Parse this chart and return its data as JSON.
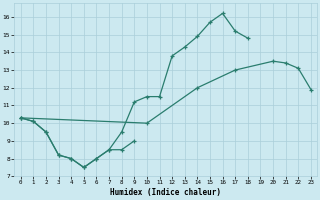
{
  "bg_color": "#cce9f0",
  "grid_color": "#aacfda",
  "line_color": "#2a7d6e",
  "xlabel": "Humidex (Indice chaleur)",
  "xlim": [
    -0.5,
    23.5
  ],
  "ylim": [
    7,
    16.8
  ],
  "xticks": [
    0,
    1,
    2,
    3,
    4,
    5,
    6,
    7,
    8,
    9,
    10,
    11,
    12,
    13,
    14,
    15,
    16,
    17,
    18,
    19,
    20,
    21,
    22,
    23
  ],
  "yticks": [
    7,
    8,
    9,
    10,
    11,
    12,
    13,
    14,
    15,
    16
  ],
  "line1_x": [
    0,
    1,
    2,
    3,
    4,
    5,
    6,
    7,
    8,
    9
  ],
  "line1_y": [
    10.3,
    10.1,
    9.5,
    8.2,
    8.0,
    7.5,
    8.0,
    8.5,
    8.5,
    9.0
  ],
  "line2_x": [
    0,
    1,
    2,
    3,
    4,
    5,
    6,
    7,
    8,
    9,
    10,
    11,
    12,
    13,
    14,
    15,
    16,
    17,
    18
  ],
  "line2_y": [
    10.3,
    10.1,
    9.5,
    8.2,
    8.0,
    7.5,
    8.0,
    8.5,
    9.5,
    11.2,
    11.5,
    11.5,
    13.8,
    14.3,
    14.9,
    15.7,
    16.2,
    15.2,
    14.8
  ],
  "line3_x": [
    0,
    10,
    14,
    17,
    20,
    21,
    22,
    23
  ],
  "line3_y": [
    10.3,
    10.0,
    12.0,
    13.0,
    13.5,
    13.4,
    13.1,
    11.9
  ]
}
